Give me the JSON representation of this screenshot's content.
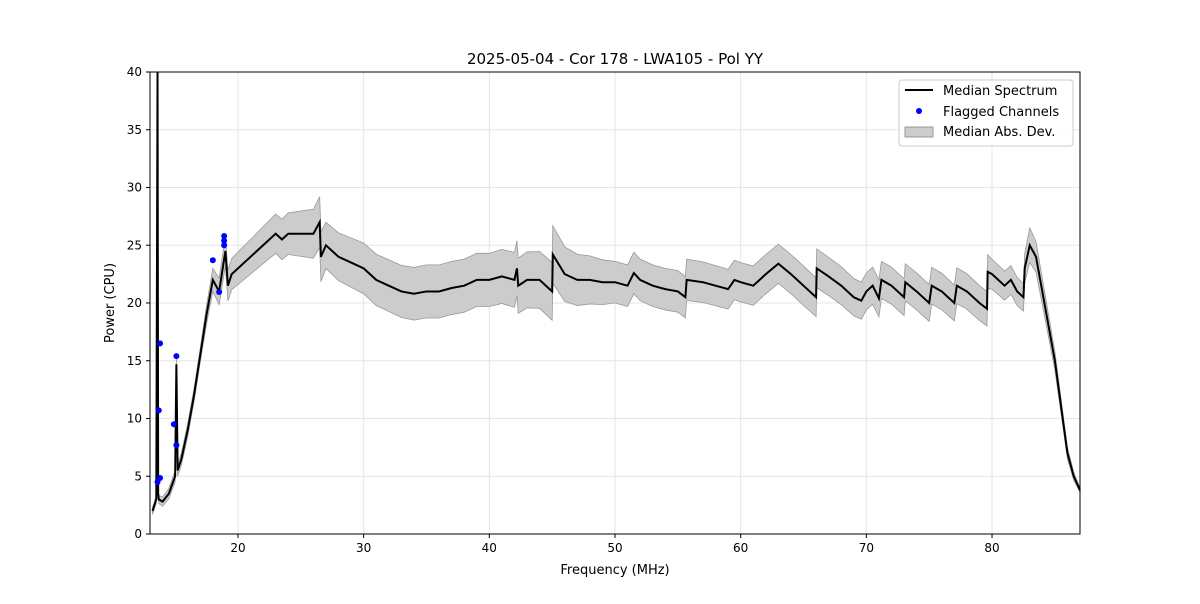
{
  "chart_data": {
    "type": "line",
    "title": "2025-05-04 - Cor 178 - LWA105 - Pol YY",
    "xlabel": "Frequency (MHz)",
    "ylabel": "Power (CPU)",
    "xlim": [
      13.0,
      87.0
    ],
    "ylim": [
      0,
      40
    ],
    "xticks": [
      20,
      30,
      40,
      50,
      60,
      70,
      80
    ],
    "yticks": [
      0,
      5,
      10,
      15,
      20,
      25,
      30,
      35,
      40
    ],
    "grid": true,
    "legend_position": "top-right",
    "legend": [
      "Median Spectrum",
      "Flagged Channels",
      "Median Abs. Dev."
    ],
    "series": [
      {
        "name": "Median Spectrum",
        "color": "#000000",
        "x": [
          13.2,
          13.5,
          13.6,
          13.65,
          13.7,
          14.0,
          14.5,
          15.0,
          15.1,
          15.2,
          15.5,
          16.0,
          16.5,
          17.0,
          17.5,
          18.0,
          18.5,
          19.0,
          19.2,
          19.5,
          20,
          21,
          22,
          23,
          23.5,
          24,
          25,
          26,
          26.5,
          26.6,
          27,
          28,
          29,
          30,
          31,
          32,
          33,
          34,
          35,
          36,
          37,
          38,
          39,
          40,
          41,
          42,
          42.2,
          42.3,
          43,
          44,
          45,
          45.05,
          46,
          47,
          48,
          49,
          50,
          51,
          51.5,
          52,
          53,
          54,
          55,
          55.6,
          55.7,
          57,
          58,
          59,
          59.5,
          60,
          61,
          62,
          63,
          64,
          65,
          66,
          66.05,
          67,
          68,
          69,
          69.6,
          70,
          70.5,
          71,
          71.2,
          72,
          73,
          73.1,
          74,
          75,
          75.2,
          76,
          77,
          77.2,
          78,
          79,
          79.6,
          79.65,
          80,
          81,
          81.5,
          82,
          82.5,
          82.6,
          83,
          83.5,
          84,
          85,
          86,
          86.5,
          87
        ],
        "y": [
          2.0,
          3.0,
          40,
          3.5,
          3.0,
          2.8,
          3.5,
          5.0,
          14.7,
          5.5,
          6.5,
          9.0,
          12,
          15.5,
          19,
          22,
          21,
          24.5,
          21.5,
          22.5,
          23,
          24,
          25,
          26,
          25.5,
          26,
          26,
          26,
          27,
          24,
          25,
          24,
          23.5,
          23,
          22,
          21.5,
          21,
          20.8,
          21,
          21,
          21.3,
          21.5,
          22,
          22,
          22.3,
          22,
          23,
          21.5,
          22,
          22,
          21,
          24.2,
          22.5,
          22,
          22,
          21.8,
          21.8,
          21.5,
          22.6,
          22,
          21.5,
          21.2,
          21,
          20.5,
          22,
          21.8,
          21.5,
          21.2,
          22,
          21.8,
          21.5,
          22.5,
          23.4,
          22.5,
          21.5,
          20.5,
          23,
          22.3,
          21.5,
          20.5,
          20.2,
          21,
          21.5,
          20.4,
          22,
          21.5,
          20.5,
          21.8,
          21,
          20,
          21.5,
          21,
          20,
          21.5,
          21,
          20,
          19.5,
          22.7,
          22.5,
          21.5,
          22,
          21,
          20.5,
          23,
          25,
          24,
          21,
          15,
          7,
          5,
          3.8
        ]
      },
      {
        "name": "Median Abs. Dev.",
        "color": "#cccccc",
        "x": [
          13.2,
          15,
          17,
          18,
          19,
          20,
          22,
          24,
          26.5,
          27,
          30,
          35,
          40,
          45,
          50,
          55,
          60,
          65,
          70,
          75,
          79.6,
          80,
          82.5,
          83,
          85,
          87
        ],
        "halfwidth": [
          0.3,
          0.5,
          0.6,
          1.0,
          1.3,
          1.4,
          1.6,
          1.8,
          2.2,
          2.0,
          2.2,
          2.3,
          2.3,
          2.5,
          1.8,
          1.8,
          1.7,
          1.7,
          1.6,
          1.6,
          1.5,
          1.3,
          1.2,
          1.5,
          0.8,
          0.2
        ]
      },
      {
        "name": "Flagged Channels",
        "color": "#0000ff",
        "type": "scatter",
        "x": [
          13.6,
          13.8,
          13.7,
          13.8,
          14.9,
          15.1,
          15.1,
          18.0,
          18.5,
          18.9,
          18.9,
          18.9
        ],
        "y": [
          4.5,
          4.85,
          10.7,
          16.5,
          9.5,
          7.7,
          15.4,
          23.7,
          20.95,
          25.8,
          25.4,
          25.0
        ]
      }
    ]
  }
}
